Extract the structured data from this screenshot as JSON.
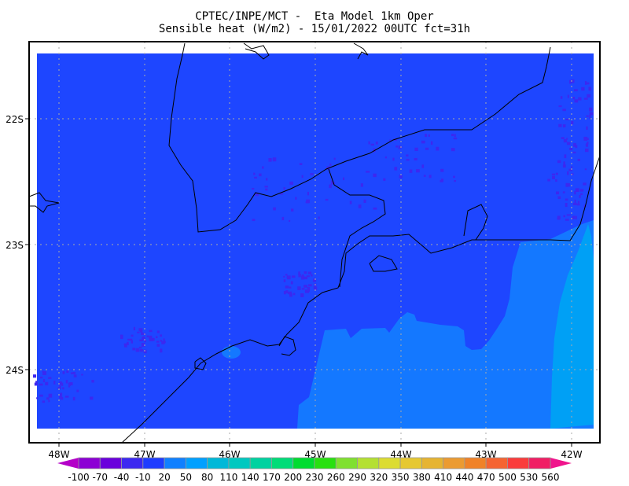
{
  "title": {
    "line1": "CPTEC/INPE/MCT -  Eta Model 1km Oper",
    "line2": "Sensible heat (W/m2) - 15/01/2022 00UTC fct=31h"
  },
  "map": {
    "lon_labels": [
      "48W",
      "47W",
      "46W",
      "45W",
      "44W",
      "43W",
      "42W"
    ],
    "lat_labels": [
      "22S",
      "23S",
      "24S"
    ],
    "field_colors": {
      "dominant": "#1e46ff",
      "level_2": "#1478ff",
      "level_3": "#00a0f5",
      "spots": "#3c28f0"
    },
    "grid": "dotted"
  },
  "colorbar": {
    "labels": [
      "-100",
      "-70",
      "-40",
      "-10",
      "20",
      "50",
      "80",
      "110",
      "140",
      "170",
      "200",
      "230",
      "260",
      "290",
      "320",
      "350",
      "380",
      "410",
      "440",
      "470",
      "500",
      "530",
      "560"
    ],
    "colors": [
      "#8c00d4",
      "#6a00dc",
      "#3c28f0",
      "#1e3cff",
      "#1080ff",
      "#00a0ff",
      "#00b8d8",
      "#00c8c0",
      "#00d2a0",
      "#00dc78",
      "#00dc30",
      "#28e010",
      "#80e030",
      "#b4e032",
      "#dcdc32",
      "#e6c832",
      "#e6b432",
      "#eb9b32",
      "#f08228",
      "#f56432",
      "#fa3c3c",
      "#f01e64"
    ],
    "under_color": "#b400c8",
    "over_color": "#f0148c"
  }
}
